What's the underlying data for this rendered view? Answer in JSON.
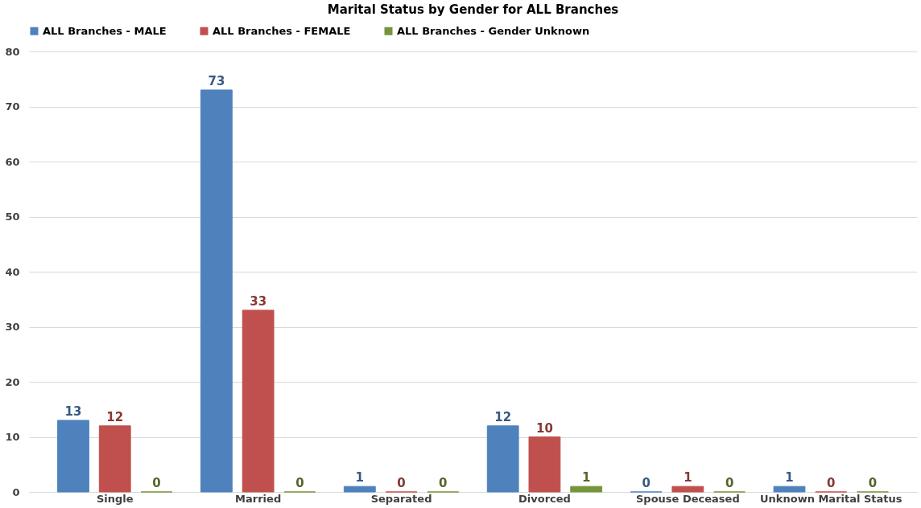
{
  "chart_data": {
    "type": "bar",
    "title": "Marital Status by Gender for ALL Branches",
    "categories": [
      "Single",
      "Married",
      "Separated",
      "Divorced",
      "Spouse Deceased",
      "Unknown Marital Status"
    ],
    "series": [
      {
        "name": "ALL Branches - MALE",
        "color": "#4f81bd",
        "values": [
          13,
          73,
          1,
          12,
          0,
          1
        ]
      },
      {
        "name": "ALL Branches - FEMALE",
        "color": "#c0504d",
        "values": [
          12,
          33,
          0,
          10,
          1,
          0
        ]
      },
      {
        "name": "ALL Branches - Gender Unknown",
        "color": "#77933c",
        "values": [
          0,
          0,
          0,
          1,
          0,
          0
        ]
      }
    ],
    "ylim": [
      0,
      80
    ],
    "yticks": [
      0,
      10,
      20,
      30,
      40,
      50,
      60,
      70,
      80
    ],
    "grid": "y",
    "legend": "top",
    "data_labels": true
  }
}
